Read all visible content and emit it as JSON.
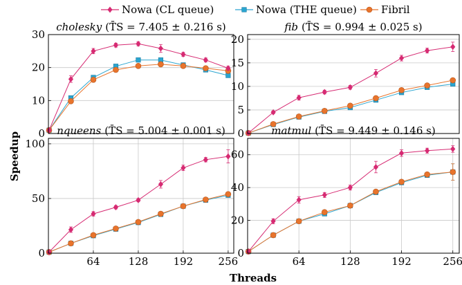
{
  "legend": [
    {
      "name": "Nowa (CL queue)",
      "color": "#d62a72",
      "marker": "diamond"
    },
    {
      "name": "Nowa (THE queue)",
      "color": "#2aa5d0",
      "marker": "square"
    },
    {
      "name": "Fibril",
      "color": "#e8742c",
      "marker": "circle"
    }
  ],
  "ylabel": "Speedup",
  "xlabel": "Threads",
  "chart_data": [
    {
      "type": "line",
      "title": "cholesky",
      "title_stats": "(T̄S = 7.405 ± 0.216 s)",
      "x": [
        1,
        32,
        64,
        96,
        128,
        160,
        192,
        224,
        256
      ],
      "xlim": [
        0,
        264
      ],
      "xticks": [],
      "ylim": [
        0,
        30
      ],
      "yticks": [
        0,
        10,
        20,
        30
      ],
      "grid": true,
      "series": [
        {
          "name": "Nowa (CL queue)",
          "values": [
            1,
            16.5,
            25,
            26.8,
            27.2,
            25.8,
            24,
            22.3,
            19.8
          ],
          "errors": [
            0.2,
            1.0,
            0.8,
            0.6,
            0.6,
            1.2,
            0.6,
            0.6,
            0.6
          ]
        },
        {
          "name": "Nowa (THE queue)",
          "values": [
            1,
            10.8,
            17,
            20.4,
            22.3,
            22.3,
            20.8,
            19.3,
            17.6
          ],
          "errors": [
            0.1,
            0.4,
            0.4,
            0.4,
            0.4,
            0.4,
            0.4,
            0.4,
            0.5
          ]
        },
        {
          "name": "Fibril",
          "values": [
            1,
            9.8,
            16.3,
            19.3,
            20.5,
            21,
            20.5,
            19.8,
            19
          ],
          "errors": [
            0.1,
            0.3,
            0.3,
            0.3,
            0.3,
            0.3,
            0.3,
            0.3,
            0.3
          ]
        }
      ]
    },
    {
      "type": "line",
      "title": "fib",
      "title_stats": "(T̄S = 0.994 ± 0.025 s)",
      "x": [
        1,
        32,
        64,
        96,
        128,
        160,
        192,
        224,
        256
      ],
      "xlim": [
        0,
        264
      ],
      "xticks": [],
      "ylim": [
        0,
        21
      ],
      "yticks": [
        0,
        5,
        10,
        15,
        20
      ],
      "grid": true,
      "series": [
        {
          "name": "Nowa (CL queue)",
          "values": [
            0.1,
            4.5,
            7.6,
            8.8,
            9.8,
            12.8,
            16,
            17.6,
            18.4
          ],
          "errors": [
            0.1,
            0.3,
            0.5,
            0.4,
            0.4,
            0.8,
            0.6,
            0.5,
            1.0
          ]
        },
        {
          "name": "Nowa (THE queue)",
          "values": [
            0.1,
            1.9,
            3.5,
            4.7,
            5.5,
            7.1,
            8.7,
            9.8,
            10.5
          ],
          "errors": [
            0.05,
            0.1,
            0.1,
            0.1,
            0.1,
            0.2,
            0.2,
            0.2,
            0.2
          ]
        },
        {
          "name": "Fibril",
          "values": [
            0.1,
            2,
            3.6,
            4.8,
            5.9,
            7.5,
            9.2,
            10.2,
            11.3
          ],
          "errors": [
            0.05,
            0.1,
            0.1,
            0.1,
            0.1,
            0.2,
            0.2,
            0.2,
            0.2
          ]
        }
      ]
    },
    {
      "type": "line",
      "title": "nqueens",
      "title_stats": "(T̄S = 5.004 ± 0.001 s)",
      "x": [
        1,
        32,
        64,
        96,
        128,
        160,
        192,
        224,
        256
      ],
      "xlim": [
        0,
        264
      ],
      "xticks": [
        64,
        128,
        192,
        256
      ],
      "ylim": [
        0,
        105
      ],
      "yticks": [
        0,
        50,
        100
      ],
      "grid": true,
      "series": [
        {
          "name": "Nowa (CL queue)",
          "values": [
            1,
            21.5,
            36,
            42,
            48.5,
            63,
            78,
            85.5,
            88.5
          ],
          "errors": [
            0.2,
            2.5,
            2,
            1.5,
            1.5,
            3.5,
            2.5,
            2,
            6
          ]
        },
        {
          "name": "Nowa (THE queue)",
          "values": [
            1,
            9,
            16,
            22,
            28,
            35.5,
            43,
            48.5,
            53
          ],
          "errors": [
            0.1,
            0.5,
            0.5,
            0.5,
            0.5,
            0.8,
            0.8,
            0.8,
            0.8
          ]
        },
        {
          "name": "Fibril",
          "values": [
            1,
            9,
            16.5,
            22.5,
            28.5,
            36,
            43,
            49,
            54
          ],
          "errors": [
            0.1,
            0.5,
            0.5,
            0.5,
            0.5,
            0.8,
            0.8,
            0.8,
            0.8
          ]
        }
      ]
    },
    {
      "type": "line",
      "title": "matmul",
      "title_stats": "(T̄S = 9.449 ± 0.146 s)",
      "x": [
        1,
        32,
        64,
        96,
        128,
        160,
        192,
        224,
        256
      ],
      "xlim": [
        0,
        264
      ],
      "xticks": [
        64,
        128,
        192,
        256
      ],
      "ylim": [
        0,
        70
      ],
      "yticks": [
        0,
        20,
        40,
        60
      ],
      "grid": true,
      "series": [
        {
          "name": "Nowa (CL queue)",
          "values": [
            1,
            19.5,
            32.5,
            35.5,
            40,
            52.5,
            61,
            62.5,
            63.5
          ],
          "errors": [
            0.2,
            1.5,
            2,
            1.5,
            1.5,
            3.5,
            2,
            1.5,
            2
          ]
        },
        {
          "name": "Nowa (THE queue)",
          "values": [
            1,
            11,
            19.5,
            24,
            29,
            37,
            43,
            47.5,
            49.5
          ],
          "errors": [
            0.1,
            0.5,
            0.8,
            0.8,
            0.8,
            1,
            1,
            1,
            5
          ]
        },
        {
          "name": "Fibril",
          "values": [
            1,
            11,
            19.5,
            25,
            29,
            37.5,
            43.5,
            48,
            49.5
          ],
          "errors": [
            0.1,
            0.5,
            0.8,
            0.8,
            0.8,
            1,
            1,
            1,
            5
          ]
        }
      ]
    }
  ]
}
